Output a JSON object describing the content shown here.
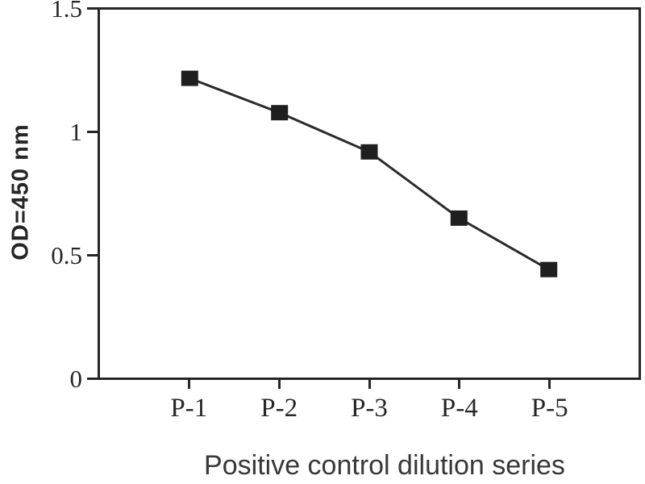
{
  "chart_data": {
    "type": "line",
    "title": "",
    "categories": [
      "P-1",
      "P-2",
      "P-3",
      "P-4",
      "P-5"
    ],
    "values": [
      1.22,
      1.08,
      0.92,
      0.65,
      0.44
    ],
    "xlabel": "Positive control dilution series",
    "ylabel": "OD=450 nm",
    "ylim": [
      0,
      1.5
    ],
    "yticks": [
      {
        "value": 0,
        "label": "0"
      },
      {
        "value": 0.5,
        "label": "0.5"
      },
      {
        "value": 1,
        "label": "1"
      },
      {
        "value": 1.5,
        "label": "1.5"
      }
    ],
    "marker": "filled-square",
    "grid": false,
    "legend": "none",
    "colors": {
      "line": "#2b2b2b",
      "marker": "#1f1f1f",
      "axis": "#262626",
      "tick_text": "#262626",
      "xlabel_text": "#383838",
      "background": "#ffffff"
    }
  }
}
